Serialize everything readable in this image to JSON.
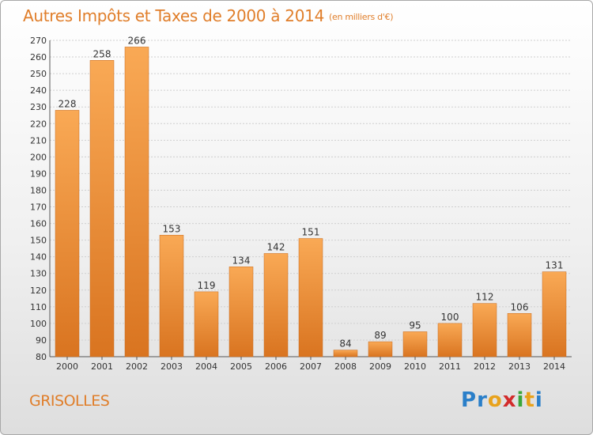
{
  "title": "Autres Impôts et Taxes de 2000 à 2014",
  "unit": "(en milliers d'€)",
  "commune": "GRISOLLES",
  "logo": {
    "text": "Proxiti",
    "letters": [
      "P",
      "r",
      "o",
      "x",
      "i",
      "t",
      "i"
    ],
    "colors": [
      "#2a7fc9",
      "#2a7fc9",
      "#e8a21c",
      "#d22b2b",
      "#3aa63a",
      "#e8a21c",
      "#2a7fc9"
    ]
  },
  "colors": {
    "bar_light": "#f9a955",
    "bar_dark": "#d97420",
    "title": "#e07e2a",
    "grid": "#cfcfcf"
  },
  "chart_data": {
    "type": "bar",
    "categories": [
      "2000",
      "2001",
      "2002",
      "2003",
      "2004",
      "2005",
      "2006",
      "2007",
      "2008",
      "2009",
      "2010",
      "2011",
      "2012",
      "2013",
      "2014"
    ],
    "values": [
      228,
      258,
      266,
      153,
      119,
      134,
      142,
      151,
      84,
      89,
      95,
      100,
      112,
      106,
      131
    ],
    "ylim": [
      80,
      270
    ],
    "yticks": [
      80,
      90,
      100,
      110,
      120,
      130,
      140,
      150,
      160,
      170,
      180,
      190,
      200,
      210,
      220,
      230,
      240,
      250,
      260,
      270
    ],
    "grid": true
  }
}
